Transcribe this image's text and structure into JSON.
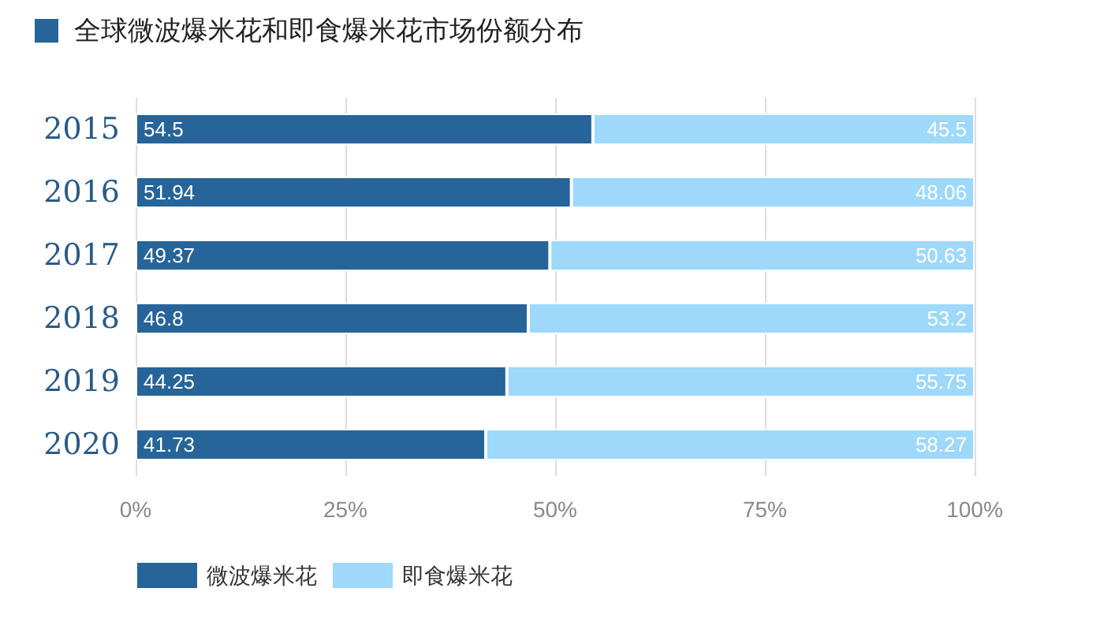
{
  "chart_data": {
    "type": "bar",
    "title": "全球微波爆米花和即食爆米花市场份额分布",
    "orientation": "horizontal",
    "stacked": true,
    "categories": [
      "2015",
      "2016",
      "2017",
      "2018",
      "2019",
      "2020"
    ],
    "series": [
      {
        "name": "微波爆米花",
        "color": "#266499",
        "values": [
          54.5,
          51.94,
          49.37,
          46.8,
          44.25,
          41.73
        ]
      },
      {
        "name": "即食爆米花",
        "color": "#9ed8fb",
        "values": [
          45.5,
          48.06,
          50.63,
          53.2,
          55.75,
          58.27
        ]
      }
    ],
    "xlim": [
      0,
      100
    ],
    "xticks": [
      {
        "value": 0,
        "label": "0%"
      },
      {
        "value": 25,
        "label": "25%"
      },
      {
        "value": 50,
        "label": "50%"
      },
      {
        "value": 75,
        "label": "75%"
      },
      {
        "value": 100,
        "label": "100%"
      }
    ],
    "grid": "x",
    "legend": "bottom left",
    "data_labels": true
  }
}
